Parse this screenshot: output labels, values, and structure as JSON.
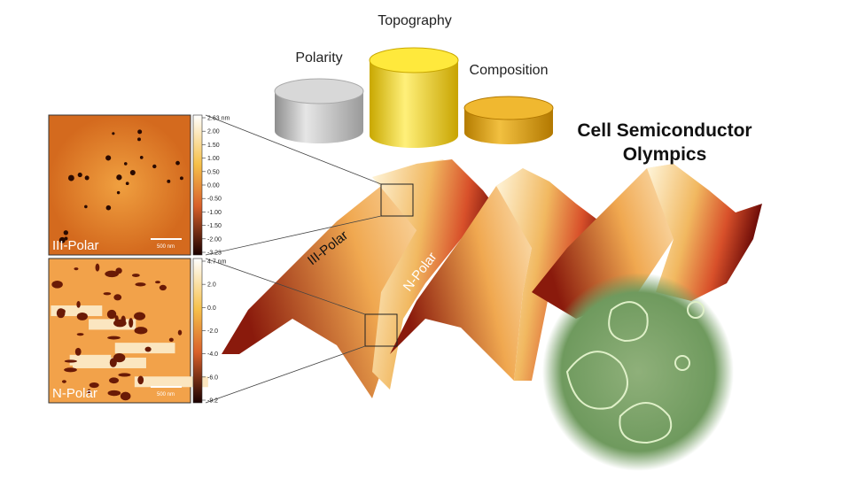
{
  "podium": {
    "left": "Polarity",
    "center": "Topography",
    "right": "Composition"
  },
  "title": [
    "Cell Semiconductor",
    "Olympics"
  ],
  "panels": [
    {
      "label": "III-Polar",
      "scale_bar": "500 nm",
      "colorbar": [
        "2.63 nm",
        "2.00",
        "1.50",
        "1.00",
        "0.50",
        "0.00",
        "-0.50",
        "-1.00",
        "-1.50",
        "-2.00",
        "-3.23"
      ]
    },
    {
      "label": "N-Polar",
      "scale_bar": "500 nm",
      "colorbar": [
        "4.7 nm",
        "2.0",
        "0.0",
        "-2.0",
        "-4.0",
        "-6.0",
        "-9.2"
      ]
    }
  ],
  "surface_labels": [
    "III-Polar",
    "N-Polar"
  ]
}
